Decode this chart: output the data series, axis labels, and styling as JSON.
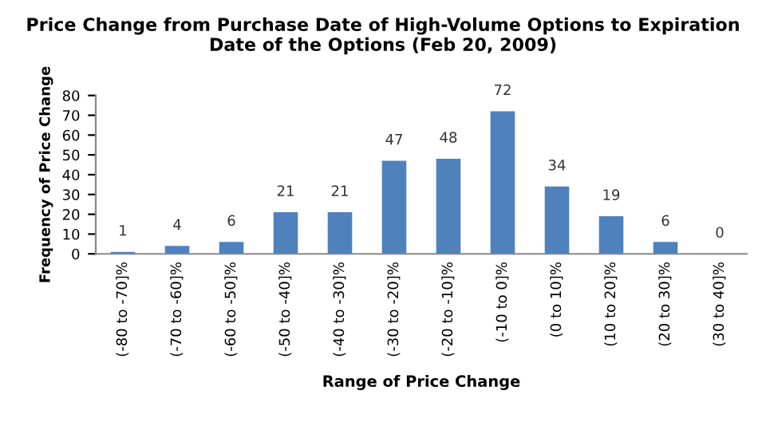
{
  "chart_data": {
    "type": "bar",
    "title": "Price Change from Purchase Date of High-Volume Options to Expiration Date of the Options (Feb 20, 2009)",
    "xlabel": "Range of Price Change",
    "ylabel": "Frequency of Price Change",
    "categories": [
      "(-80 to -70]%",
      "(-70 to -60]%",
      "(-60 to -50]%",
      "(-50 to -40]%",
      "(-40 to -30]%",
      "(-30 to -20]%",
      "(-20 to -10]%",
      "(-10 to 0]%",
      "(0 to 10]%",
      "(10 to 20]%",
      "(20 to 30]%",
      "(30 to 40]%"
    ],
    "values": [
      1,
      4,
      6,
      21,
      21,
      47,
      48,
      72,
      34,
      19,
      6,
      0
    ],
    "color": "#4f81bd",
    "ylim": [
      0,
      80
    ],
    "yticks": [
      0,
      10,
      20,
      30,
      40,
      50,
      60,
      70,
      80
    ],
    "data_labels": true
  }
}
